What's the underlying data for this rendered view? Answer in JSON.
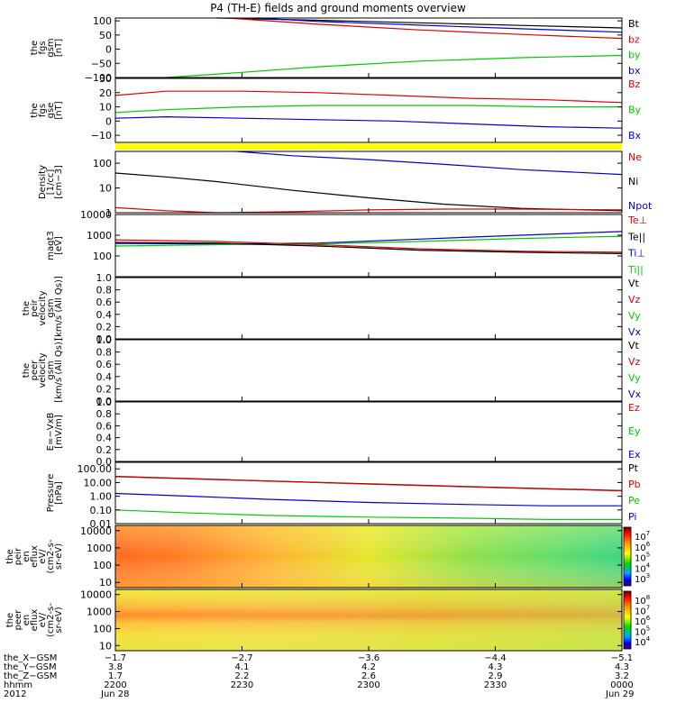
{
  "title": "P4 (TH-E) fields and ground moments overview",
  "colors": {
    "black": "#000000",
    "red": "#e00000",
    "green": "#00cc00",
    "blue": "#0000cc",
    "yellow": "#ffff00"
  },
  "chart_data": {
    "type": "line",
    "x_ticks": [
      "2200",
      "2230",
      "2300",
      "2330",
      "0000"
    ],
    "panels": [
      {
        "id": "fgs-gsm-top",
        "ylabel_lines": [
          "the",
          "fgs",
          "gsm",
          "[nT]"
        ],
        "ylim": [
          -100,
          110
        ],
        "scale": "linear",
        "yticks": [
          {
            "v": 100,
            "label": "100"
          },
          {
            "v": 50,
            "label": "50"
          },
          {
            "v": 0,
            "label": "0"
          },
          {
            "v": -50,
            "label": "−50"
          },
          {
            "v": -100,
            "label": "−100"
          }
        ],
        "legend": [
          {
            "label": "Bt",
            "color": "#000000"
          },
          {
            "label": "bz",
            "color": "#e00000"
          },
          {
            "label": "by",
            "color": "#00cc00"
          },
          {
            "label": "bx",
            "color": "#0000cc"
          }
        ],
        "series": [
          {
            "name": "Bt",
            "color": "#000000",
            "x": [
              0.2,
              0.4,
              0.6,
              0.8,
              1.0
            ],
            "y": [
              110,
              102,
              93,
              84,
              75
            ]
          },
          {
            "name": "bz",
            "color": "#e00000",
            "x": [
              0.22,
              0.4,
              0.6,
              0.8,
              1.0
            ],
            "y": [
              110,
              88,
              68,
              52,
              38
            ]
          },
          {
            "name": "by",
            "color": "#00cc00",
            "x": [
              0.1,
              0.25,
              0.4,
              0.6,
              0.8,
              1.0
            ],
            "y": [
              -100,
              -82,
              -62,
              -42,
              -30,
              -22
            ]
          },
          {
            "name": "bx",
            "color": "#0000cc",
            "x": [
              0.28,
              0.4,
              0.6,
              0.8,
              1.0
            ],
            "y": [
              110,
              98,
              85,
              72,
              60
            ]
          }
        ]
      },
      {
        "id": "fgs-gse",
        "ylabel_lines": [
          "the",
          "fgs",
          "gse",
          "[nT]"
        ],
        "ylim": [
          -15,
          30
        ],
        "scale": "linear",
        "yticks": [
          {
            "v": 30,
            "label": "30"
          },
          {
            "v": 20,
            "label": "20"
          },
          {
            "v": 10,
            "label": "10"
          },
          {
            "v": 0,
            "label": "0"
          },
          {
            "v": -10,
            "label": "−10"
          }
        ],
        "legend": [
          {
            "label": "Bz",
            "color": "#e00000"
          },
          {
            "label": "By",
            "color": "#00cc00"
          },
          {
            "label": "Bx",
            "color": "#0000cc"
          }
        ],
        "series": [
          {
            "name": "Bz",
            "color": "#e00000",
            "x": [
              0,
              0.1,
              0.25,
              0.4,
              0.55,
              0.7,
              0.85,
              1.0
            ],
            "y": [
              18,
              21,
              21,
              20,
              18,
              16,
              15,
              13
            ]
          },
          {
            "name": "By",
            "color": "#00cc00",
            "x": [
              0,
              0.1,
              0.25,
              0.4,
              0.55,
              0.7,
              0.85,
              1.0
            ],
            "y": [
              6,
              8,
              10,
              11,
              11,
              11,
              10,
              10
            ]
          },
          {
            "name": "Bx",
            "color": "#0000cc",
            "x": [
              0,
              0.1,
              0.25,
              0.4,
              0.55,
              0.7,
              0.85,
              1.0
            ],
            "y": [
              2,
              3,
              2,
              1,
              0,
              -2,
              -4,
              -5
            ]
          }
        ]
      },
      {
        "id": "density",
        "ylabel_lines": [
          "Density",
          "[1/cc]",
          "[cm−3]"
        ],
        "ylim": [
          1,
          300
        ],
        "scale": "log",
        "yticks": [
          {
            "v": 100,
            "label": "100"
          },
          {
            "v": 10,
            "label": "10"
          },
          {
            "v": 1,
            "label": "1"
          }
        ],
        "legend": [
          {
            "label": "Ne",
            "color": "#e00000"
          },
          {
            "label": "Ni",
            "color": "#000000"
          },
          {
            "label": "Npot",
            "color": "#0000cc"
          }
        ],
        "series": [
          {
            "name": "Npot",
            "color": "#0000cc",
            "x": [
              0.24,
              0.35,
              0.5,
              0.65,
              0.8,
              1.0
            ],
            "y": [
              300,
              200,
              140,
              90,
              55,
              35
            ]
          },
          {
            "name": "Ni",
            "color": "#000000",
            "x": [
              0,
              0.1,
              0.2,
              0.35,
              0.5,
              0.65,
              0.8,
              1.0
            ],
            "y": [
              40,
              28,
              18,
              8,
              4,
              2.2,
              1.5,
              1.2
            ]
          },
          {
            "name": "Ne",
            "color": "#e00000",
            "x": [
              0,
              0.1,
              0.2,
              0.35,
              0.5,
              0.65,
              0.8,
              1.0
            ],
            "y": [
              1.6,
              1.2,
              1.0,
              1.1,
              1.3,
              1.4,
              1.4,
              1.3
            ]
          }
        ]
      },
      {
        "id": "temperature",
        "ylabel_lines": [
          "magt3",
          "[eV]"
        ],
        "ylim": [
          10,
          10000
        ],
        "scale": "log",
        "yticks": [
          {
            "v": 10000,
            "label": "10000"
          },
          {
            "v": 1000,
            "label": "1000"
          },
          {
            "v": 100,
            "label": "100"
          }
        ],
        "legend": [
          {
            "label": "Te⊥",
            "color": "#e00000"
          },
          {
            "label": "Te||",
            "color": "#000000"
          },
          {
            "label": "Ti⊥",
            "color": "#0000cc"
          },
          {
            "label": "Ti||",
            "color": "#00cc00"
          }
        ],
        "series": [
          {
            "name": "Ti⊥",
            "color": "#0000cc",
            "x": [
              0,
              0.2,
              0.4,
              0.6,
              0.8,
              1.0
            ],
            "y": [
              400,
              380,
              420,
              650,
              1000,
              1500
            ]
          },
          {
            "name": "Ti||",
            "color": "#00cc00",
            "x": [
              0,
              0.2,
              0.4,
              0.6,
              0.8,
              1.0
            ],
            "y": [
              300,
              350,
              380,
              500,
              700,
              900
            ]
          },
          {
            "name": "Te⊥",
            "color": "#e00000",
            "x": [
              0,
              0.2,
              0.4,
              0.6,
              0.8,
              1.0
            ],
            "y": [
              600,
              500,
              350,
              220,
              170,
              150
            ]
          },
          {
            "name": "Te||",
            "color": "#000000",
            "x": [
              0,
              0.2,
              0.4,
              0.6,
              0.8,
              1.0
            ],
            "y": [
              450,
              420,
              300,
              190,
              150,
              130
            ]
          }
        ]
      },
      {
        "id": "velocity-peir",
        "ylabel_lines": [
          "the",
          "peir",
          "velocity",
          "gsm",
          "[km/s (All Qs)]"
        ],
        "ylim": [
          0,
          1
        ],
        "scale": "linear",
        "yticks": [
          {
            "v": 1,
            "label": "1.0"
          },
          {
            "v": 0.8,
            "label": "0.8"
          },
          {
            "v": 0.6,
            "label": "0.6"
          },
          {
            "v": 0.4,
            "label": "0.4"
          },
          {
            "v": 0.2,
            "label": "0.2"
          },
          {
            "v": 0,
            "label": "0.0"
          }
        ],
        "legend": [
          {
            "label": "Vt",
            "color": "#000000"
          },
          {
            "label": "Vz",
            "color": "#e00000"
          },
          {
            "label": "Vy",
            "color": "#00cc00"
          },
          {
            "label": "Vx",
            "color": "#0000cc"
          }
        ],
        "series": []
      },
      {
        "id": "velocity-peer",
        "ylabel_lines": [
          "the",
          "peer",
          "velocity",
          "gsm",
          "[km/s (All Qs)]"
        ],
        "ylim": [
          0,
          1
        ],
        "scale": "linear",
        "yticks": [
          {
            "v": 1,
            "label": "1.0"
          },
          {
            "v": 0.8,
            "label": "0.8"
          },
          {
            "v": 0.6,
            "label": "0.6"
          },
          {
            "v": 0.4,
            "label": "0.4"
          },
          {
            "v": 0.2,
            "label": "0.2"
          },
          {
            "v": 0,
            "label": "0.0"
          }
        ],
        "legend": [
          {
            "label": "Vt",
            "color": "#000000"
          },
          {
            "label": "Vz",
            "color": "#e00000"
          },
          {
            "label": "Vy",
            "color": "#00cc00"
          },
          {
            "label": "Vx",
            "color": "#0000cc"
          }
        ],
        "series": []
      },
      {
        "id": "efield",
        "ylabel_lines": [
          "E=−VxB",
          "[mV/m]"
        ],
        "ylim": [
          0,
          1
        ],
        "scale": "linear",
        "yticks": [
          {
            "v": 1,
            "label": "1.0"
          },
          {
            "v": 0.8,
            "label": "0.8"
          },
          {
            "v": 0.6,
            "label": "0.6"
          },
          {
            "v": 0.4,
            "label": "0.4"
          },
          {
            "v": 0.2,
            "label": "0.2"
          },
          {
            "v": 0,
            "label": "0.0"
          }
        ],
        "legend": [
          {
            "label": "Ez",
            "color": "#e00000"
          },
          {
            "label": "Ey",
            "color": "#00cc00"
          },
          {
            "label": "Ex",
            "color": "#0000cc"
          }
        ],
        "series": []
      },
      {
        "id": "pressure",
        "ylabel_lines": [
          "Pressure",
          "[nPa]"
        ],
        "ylim": [
          0.01,
          300
        ],
        "scale": "log",
        "yticks": [
          {
            "v": 100,
            "label": "100.00"
          },
          {
            "v": 10,
            "label": "10.00"
          },
          {
            "v": 1,
            "label": "1.00"
          },
          {
            "v": 0.1,
            "label": "0.10"
          },
          {
            "v": 0.01,
            "label": "0.01"
          }
        ],
        "legend": [
          {
            "label": "Pt",
            "color": "#000000"
          },
          {
            "label": "Pb",
            "color": "#e00000"
          },
          {
            "label": "Pe",
            "color": "#00cc00"
          },
          {
            "label": "Pi",
            "color": "#0000cc"
          }
        ],
        "series": [
          {
            "name": "Pt",
            "color": "#000000",
            "x": [
              0,
              0.25,
              0.5,
              0.75,
              1.0
            ],
            "y": [
              28,
              15,
              8,
              4.5,
              2.6
            ]
          },
          {
            "name": "Pb",
            "color": "#e00000",
            "x": [
              0,
              0.25,
              0.5,
              0.75,
              1.0
            ],
            "y": [
              27,
              14.5,
              7.8,
              4.3,
              2.5
            ]
          },
          {
            "name": "Pi",
            "color": "#0000cc",
            "x": [
              0,
              0.15,
              0.3,
              0.5,
              0.7,
              0.85,
              1.0
            ],
            "y": [
              1.6,
              1.0,
              0.6,
              0.35,
              0.25,
              0.2,
              0.2
            ]
          },
          {
            "name": "Pe",
            "color": "#00cc00",
            "x": [
              0,
              0.15,
              0.3,
              0.5,
              0.7,
              0.85,
              1.0
            ],
            "y": [
              0.1,
              0.06,
              0.04,
              0.03,
              0.025,
              0.02,
              0.02
            ]
          }
        ]
      },
      {
        "id": "peir-eflux",
        "type": "heatmap",
        "ylabel_lines": [
          "the",
          "peir",
          "en",
          "eflux",
          "eV/",
          "(cm2-s-",
          "sr-eV)"
        ],
        "ylim": [
          5,
          20000
        ],
        "scale": "log",
        "yticks": [
          {
            "v": 10000,
            "label": "10000"
          },
          {
            "v": 1000,
            "label": "1000"
          },
          {
            "v": 100,
            "label": "100"
          },
          {
            "v": 10,
            "label": "10"
          }
        ],
        "colorbar_ticks": [
          "10",
          "10",
          "10",
          "10",
          "10"
        ],
        "colorbar_exps": [
          "7",
          "6",
          "5",
          "4",
          "3"
        ]
      },
      {
        "id": "peer-eflux",
        "type": "heatmap",
        "ylabel_lines": [
          "the",
          "peer",
          "en",
          "eflux",
          "eV/",
          "(cm2-s-",
          "sr-eV)"
        ],
        "ylim": [
          5,
          20000
        ],
        "scale": "log",
        "yticks": [
          {
            "v": 10000,
            "label": "10000"
          },
          {
            "v": 1000,
            "label": "1000"
          },
          {
            "v": 100,
            "label": "100"
          },
          {
            "v": 10,
            "label": "10"
          }
        ],
        "colorbar_ticks": [
          "10",
          "10",
          "10",
          "10",
          "10"
        ],
        "colorbar_exps": [
          "8",
          "7",
          "6",
          "5",
          "4"
        ]
      }
    ],
    "footer": {
      "row_labels": [
        "the_X−GSM",
        "the_Y−GSM",
        "the_Z−GSM",
        "hhmm",
        "2012"
      ],
      "columns": [
        [
          "−1.7",
          "3.8",
          "1.7",
          "2200",
          "Jun 28"
        ],
        [
          "−2.7",
          "4.1",
          "2.2",
          "2230",
          ""
        ],
        [
          "−3.6",
          "4.2",
          "2.6",
          "2300",
          ""
        ],
        [
          "−4.4",
          "4.3",
          "2.9",
          "2330",
          ""
        ],
        [
          "−5.1",
          "4.3",
          "3.2",
          "0000",
          "Jun 29"
        ]
      ]
    }
  }
}
